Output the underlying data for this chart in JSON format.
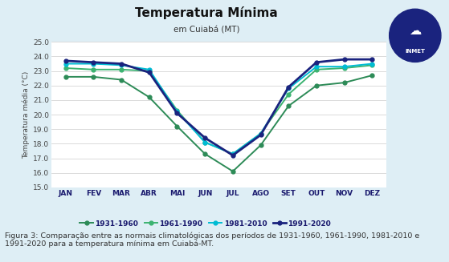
{
  "title": "Temperatura Mínima",
  "subtitle": "em Cuiabá (MT)",
  "ylabel": "Temperatura média (°C)",
  "months": [
    "JAN",
    "FEV",
    "MAR",
    "ABR",
    "MAI",
    "JUN",
    "JUL",
    "AGO",
    "SET",
    "OUT",
    "NOV",
    "DEZ"
  ],
  "ylim": [
    15.0,
    25.0
  ],
  "yticks": [
    15.0,
    16.0,
    17.0,
    18.0,
    19.0,
    20.0,
    21.0,
    22.0,
    23.0,
    24.0,
    25.0
  ],
  "series": {
    "1931-1960": [
      22.6,
      22.6,
      22.4,
      21.2,
      19.2,
      17.3,
      16.1,
      17.9,
      20.6,
      22.0,
      22.2,
      22.7
    ],
    "1961-1990": [
      23.2,
      23.1,
      23.1,
      23.0,
      20.3,
      18.1,
      17.3,
      18.7,
      21.4,
      23.1,
      23.2,
      23.4
    ],
    "1981-2010": [
      23.5,
      23.5,
      23.4,
      23.1,
      20.2,
      18.1,
      17.3,
      18.7,
      21.8,
      23.3,
      23.3,
      23.5
    ],
    "1991-2020": [
      23.7,
      23.6,
      23.5,
      22.9,
      20.1,
      18.4,
      17.2,
      18.6,
      21.9,
      23.6,
      23.8,
      23.8
    ]
  },
  "colors": {
    "1931-1960": "#2d8b57",
    "1961-1990": "#3cb371",
    "1981-2010": "#00bcd4",
    "1991-2020": "#1a237e"
  },
  "bg_color": "#deeef5",
  "plot_bg": "#ffffff",
  "caption": "Figura 3: Comparação entre as normais climatológicas dos períodos de 1931-1960, 1961-1990, 1981-2010 e\n1991-2020 para a temperatura mínima em Cuiabá-MT.",
  "caption_fontsize": 6.8
}
